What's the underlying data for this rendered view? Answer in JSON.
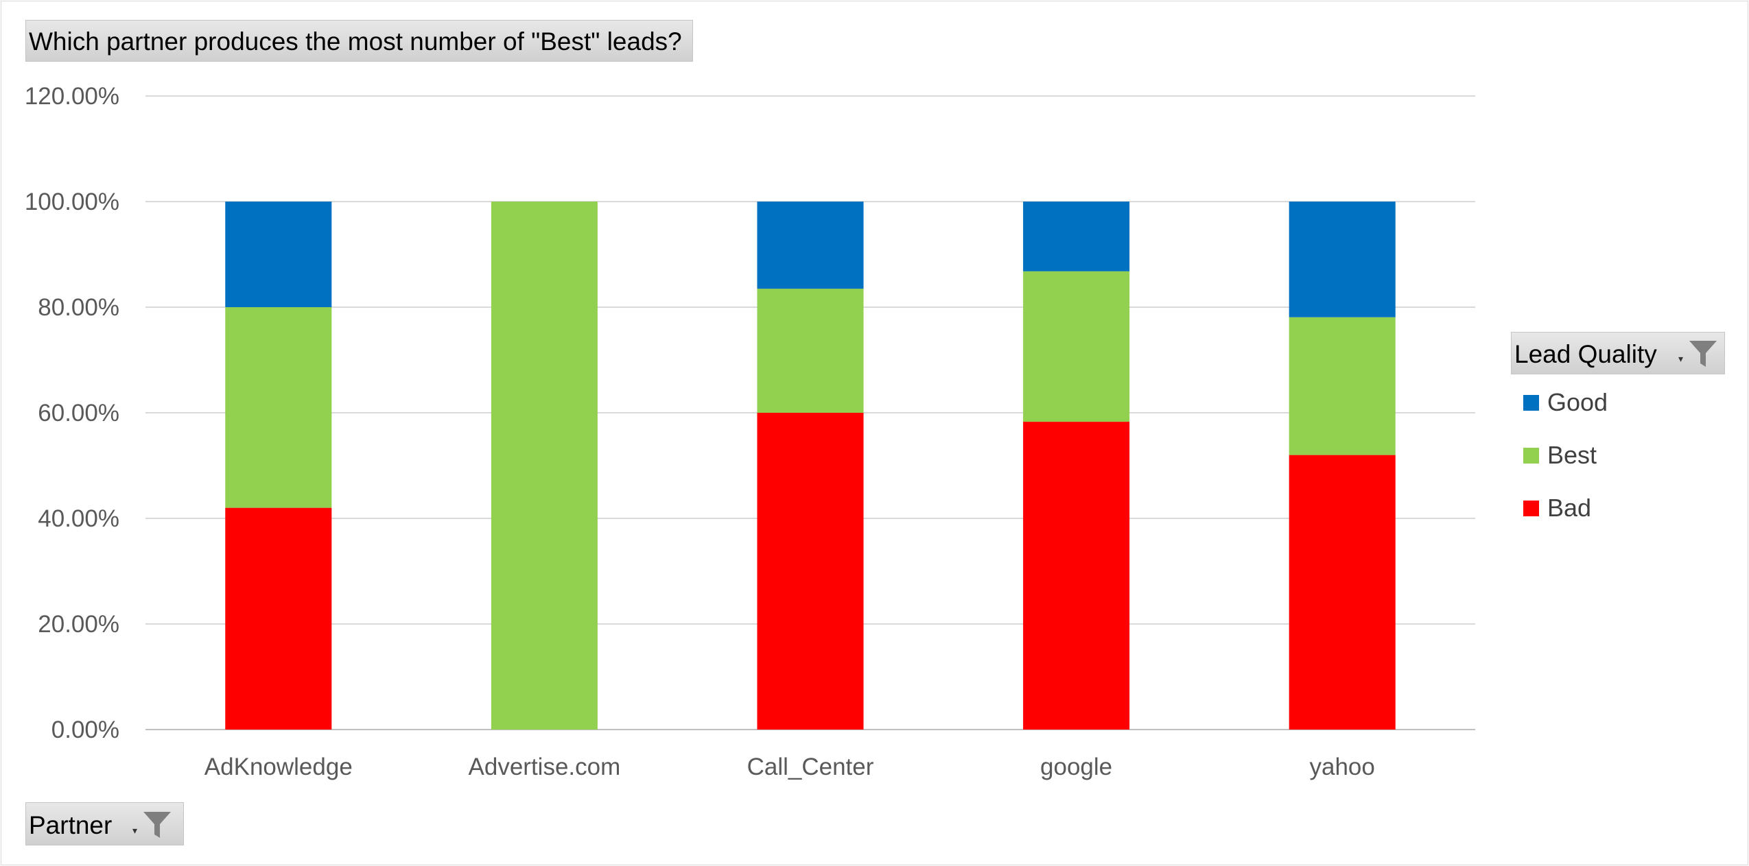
{
  "chart_data": {
    "type": "bar",
    "stacked": true,
    "title": "Which partner produces the most number of \"Best\" leads?",
    "xlabel": "Partner",
    "legend_title": "Lead Quality",
    "legend_position": "right",
    "grid": true,
    "categories": [
      "AdKnowledge",
      "Advertise.com",
      "Call_Center",
      "google",
      "yahoo"
    ],
    "ylim": [
      0,
      1.2
    ],
    "yticks": [
      0,
      0.2,
      0.4,
      0.6,
      0.8,
      1.0,
      1.2
    ],
    "ytick_labels": [
      "0.00%",
      "20.00%",
      "40.00%",
      "60.00%",
      "80.00%",
      "100.00%",
      "120.00%"
    ],
    "series": [
      {
        "name": "Bad",
        "color": "#ff0000",
        "values": [
          0.42,
          0.0,
          0.6,
          0.583,
          0.52
        ]
      },
      {
        "name": "Best",
        "color": "#92d050",
        "values": [
          0.38,
          1.0,
          0.235,
          0.285,
          0.261
        ]
      },
      {
        "name": "Good",
        "color": "#0070c0",
        "values": [
          0.2,
          0.0,
          0.165,
          0.132,
          0.219
        ]
      }
    ],
    "legend_order": [
      "Good",
      "Best",
      "Bad"
    ]
  },
  "icons": {
    "filter": "funnel-filter-icon",
    "dropdown": "dropdown-arrow-icon"
  }
}
